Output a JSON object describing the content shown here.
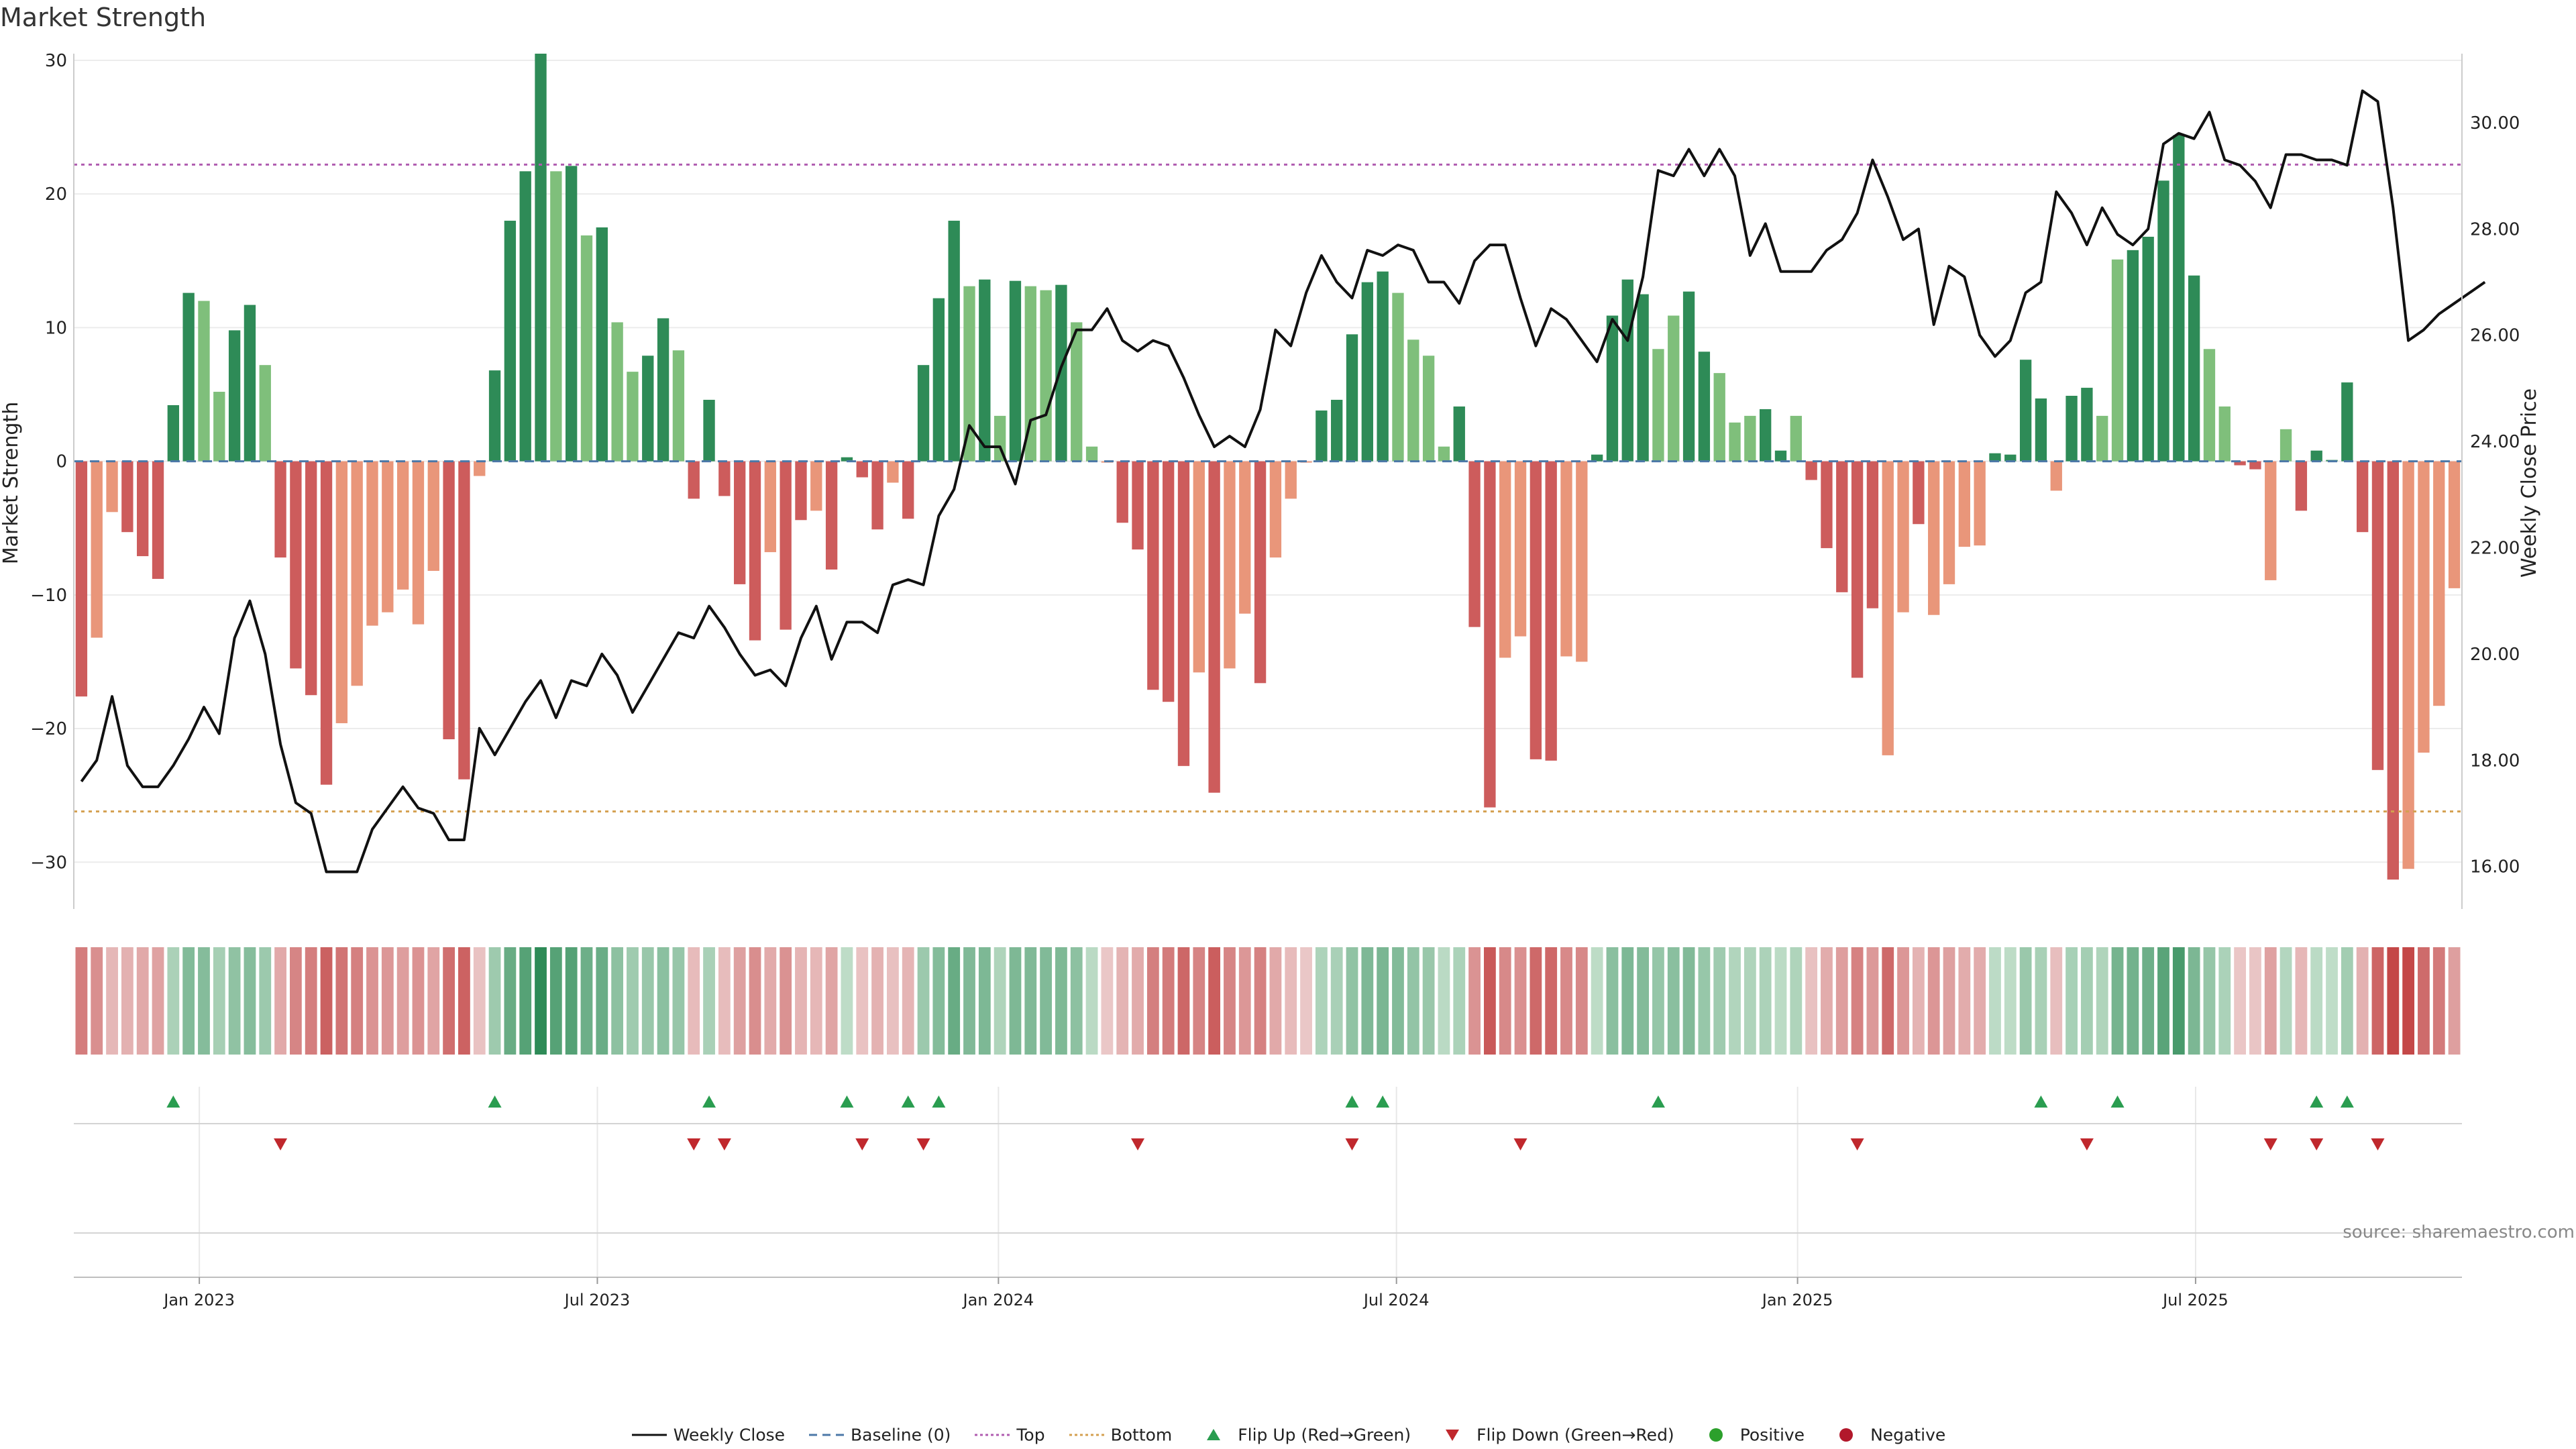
{
  "title": "Market Strength",
  "source": "source: sharemaestro.com",
  "colors": {
    "pos_dark": "#2e8b57",
    "pos_light": "#7fbf7b",
    "neg_dark": "#cd5c5c",
    "neg_light": "#e9967a",
    "price_line": "#111111",
    "baseline": "#4c78a8",
    "top": "#b05cb0",
    "bottom": "#d4a050",
    "flip_up": "#2a9d50",
    "flip_down": "#c0282d",
    "positive": "#2ca02c",
    "negative": "#b2182b"
  },
  "legend": [
    {
      "label": "Weekly Close",
      "symbol": "line"
    },
    {
      "label": "Baseline (0)",
      "symbol": "dash"
    },
    {
      "label": "Top",
      "symbol": "dot-top"
    },
    {
      "label": "Bottom",
      "symbol": "dot-bottom"
    },
    {
      "label": "Flip Up (Red→Green)",
      "symbol": "tri-up"
    },
    {
      "label": "Flip Down (Green→Red)",
      "symbol": "tri-down"
    },
    {
      "label": "Positive",
      "symbol": "circle-pos"
    },
    {
      "label": "Negative",
      "symbol": "circle-neg"
    }
  ],
  "chart_data": {
    "type": "bar",
    "title": "Market Strength",
    "ylabel": "Market Strength",
    "y2label": "Weekly Close Price",
    "ylim": [
      -33.5,
      30.5
    ],
    "y2lim": [
      15.2,
      31.3
    ],
    "yticks": [
      30,
      20,
      10,
      0,
      -10,
      -20,
      -30
    ],
    "ytick_labels": [
      "30",
      "20",
      "10",
      "0",
      "−10",
      "−20",
      "−30"
    ],
    "y2ticks": [
      30,
      28,
      26,
      24,
      22,
      20,
      18,
      16
    ],
    "y2tick_labels": [
      "30.00",
      "28.00",
      "26.00",
      "24.00",
      "22.00",
      "20.00",
      "18.00",
      "16.00"
    ],
    "xticks": [
      {
        "label": "Jan 2023",
        "week": 7.7
      },
      {
        "label": "Jul 2023",
        "week": 33.7
      },
      {
        "label": "Jan 2024",
        "week": 59.9
      },
      {
        "label": "Jul 2024",
        "week": 85.9
      },
      {
        "label": "Jan 2025",
        "week": 112.1
      },
      {
        "label": "Jul 2025",
        "week": 138.1
      }
    ],
    "top_line": 22.2,
    "bottom_line": -26.2,
    "baseline": 0,
    "strength": [
      -17.6,
      -13.2,
      -3.8,
      -5.3,
      -7.1,
      -8.8,
      4.2,
      12.6,
      12.0,
      5.2,
      9.8,
      11.7,
      7.2,
      -7.2,
      -15.5,
      -17.5,
      -24.2,
      -19.6,
      -16.8,
      -12.3,
      -11.3,
      -9.6,
      -12.2,
      -8.2,
      -20.8,
      -23.8,
      -1.1,
      6.8,
      18.0,
      21.7,
      30.5,
      21.7,
      22.1,
      16.9,
      17.5,
      10.4,
      6.7,
      7.9,
      10.7,
      8.3,
      -2.8,
      4.6,
      -2.6,
      -9.2,
      -13.4,
      -6.8,
      -12.6,
      -4.4,
      -3.7,
      -8.1,
      0.3,
      -1.2,
      -5.1,
      -1.6,
      -4.3,
      7.2,
      12.2,
      18.0,
      13.1,
      13.6,
      3.4,
      13.5,
      13.1,
      12.8,
      13.2,
      10.4,
      1.1,
      -0.1,
      -4.6,
      -6.6,
      -17.1,
      -18.0,
      -22.8,
      -15.8,
      -24.8,
      -15.5,
      -11.4,
      -16.6,
      -7.2,
      -2.8,
      -0.1,
      3.8,
      4.6,
      9.5,
      13.4,
      14.2,
      12.6,
      9.1,
      7.9,
      1.1,
      4.1,
      -12.4,
      -25.9,
      -14.7,
      -13.1,
      -22.3,
      -22.4,
      -14.6,
      -15.0,
      0.5,
      10.9,
      13.6,
      12.5,
      8.4,
      10.9,
      12.7,
      8.2,
      6.6,
      2.9,
      3.4,
      3.9,
      0.8,
      3.4,
      -1.4,
      -6.5,
      -9.8,
      -16.2,
      -11.0,
      -22.0,
      -11.3,
      -4.7,
      -11.5,
      -9.2,
      -6.4,
      -6.3,
      0.6,
      0.5,
      7.6,
      4.7,
      -2.2,
      4.9,
      5.5,
      3.4,
      15.1,
      15.8,
      16.8,
      21.0,
      24.4,
      13.9,
      8.4,
      4.1,
      -0.3,
      -0.6,
      -8.9,
      2.4,
      -3.7,
      0.8,
      0.1,
      5.9,
      -5.3,
      -23.1,
      -31.3,
      -30.5,
      -21.8,
      -18.3,
      -9.5
    ],
    "bar_shade": [
      "d",
      "l",
      "l",
      "d",
      "d",
      "d",
      "d",
      "d",
      "l",
      "l",
      "d",
      "d",
      "l",
      "d",
      "d",
      "d",
      "d",
      "l",
      "l",
      "l",
      "l",
      "l",
      "l",
      "l",
      "d",
      "d",
      "l",
      "d",
      "d",
      "d",
      "d",
      "l",
      "d",
      "l",
      "d",
      "l",
      "l",
      "d",
      "d",
      "l",
      "d",
      "d",
      "d",
      "d",
      "d",
      "l",
      "d",
      "d",
      "l",
      "d",
      "d",
      "d",
      "d",
      "l",
      "d",
      "d",
      "d",
      "d",
      "l",
      "d",
      "l",
      "d",
      "l",
      "l",
      "d",
      "l",
      "l",
      "l",
      "d",
      "d",
      "d",
      "d",
      "d",
      "l",
      "d",
      "l",
      "l",
      "d",
      "l",
      "l",
      "l",
      "d",
      "d",
      "d",
      "d",
      "d",
      "l",
      "l",
      "l",
      "l",
      "d",
      "d",
      "d",
      "l",
      "l",
      "d",
      "d",
      "l",
      "l",
      "d",
      "d",
      "d",
      "d",
      "l",
      "l",
      "d",
      "d",
      "l",
      "l",
      "l",
      "d",
      "d",
      "l",
      "d",
      "d",
      "d",
      "d",
      "d",
      "l",
      "l",
      "d",
      "l",
      "l",
      "l",
      "l",
      "d",
      "d",
      "d",
      "d",
      "l",
      "d",
      "d",
      "l",
      "l",
      "d",
      "d",
      "d",
      "d",
      "d",
      "l",
      "l",
      "d",
      "d",
      "l",
      "l",
      "d",
      "d",
      "d",
      "d",
      "d",
      "d",
      "d",
      "l",
      "l",
      "l",
      "l"
    ],
    "weekly_close": [
      17.6,
      18.0,
      19.2,
      17.9,
      17.5,
      17.5,
      17.9,
      18.4,
      19.0,
      18.5,
      20.3,
      21.0,
      20.0,
      18.3,
      17.2,
      17.0,
      15.9,
      15.9,
      15.9,
      16.7,
      17.1,
      17.5,
      17.1,
      17.0,
      16.5,
      16.5,
      18.6,
      18.1,
      18.6,
      19.1,
      19.5,
      18.8,
      19.5,
      19.4,
      20.0,
      19.6,
      18.9,
      19.4,
      19.9,
      20.4,
      20.3,
      20.9,
      20.5,
      20.0,
      19.6,
      19.7,
      19.4,
      20.3,
      20.9,
      19.9,
      20.6,
      20.6,
      20.4,
      21.3,
      21.4,
      21.3,
      22.6,
      23.1,
      24.3,
      23.9,
      23.9,
      23.2,
      24.4,
      24.5,
      25.4,
      26.1,
      26.1,
      26.5,
      25.9,
      25.7,
      25.9,
      25.8,
      25.2,
      24.5,
      23.9,
      24.1,
      23.9,
      24.6,
      26.1,
      25.8,
      26.8,
      27.5,
      27.0,
      26.7,
      27.6,
      27.5,
      27.7,
      27.6,
      27.0,
      27.0,
      26.6,
      27.4,
      27.7,
      27.7,
      26.7,
      25.8,
      26.5,
      26.3,
      25.9,
      25.5,
      26.3,
      25.9,
      27.1,
      29.1,
      29.0,
      29.5,
      29.0,
      29.5,
      29.0,
      27.5,
      28.1,
      27.2,
      27.2,
      27.2,
      27.6,
      27.8,
      28.3,
      29.3,
      28.6,
      27.8,
      28.0,
      26.2,
      27.3,
      27.1,
      26.0,
      25.6,
      25.9,
      26.8,
      27.0,
      28.7,
      28.3,
      27.7,
      28.4,
      27.9,
      27.7,
      28.0,
      29.6,
      29.8,
      29.7,
      30.2,
      29.3,
      29.2,
      28.9,
      28.4,
      29.4,
      29.4,
      29.3,
      29.3,
      29.2,
      30.6,
      30.4,
      28.4,
      25.9,
      26.1,
      26.4,
      26.6,
      26.8,
      27.0
    ],
    "regime_strip": [
      -17.6,
      -13.2,
      -3.8,
      -5.3,
      -7.1,
      -8.8,
      4.2,
      12.6,
      12.0,
      5.2,
      9.8,
      11.7,
      7.2,
      -7.2,
      -15.5,
      -17.5,
      -24.2,
      -19.6,
      -16.8,
      -12.3,
      -11.3,
      -9.6,
      -12.2,
      -8.2,
      -20.8,
      -23.8,
      -1.1,
      6.8,
      18.0,
      21.7,
      30.5,
      21.7,
      22.1,
      16.9,
      17.5,
      10.4,
      6.7,
      7.9,
      10.7,
      8.3,
      -2.8,
      4.6,
      -2.6,
      -9.2,
      -13.4,
      -6.8,
      -12.6,
      -4.4,
      -3.7,
      -8.1,
      0.3,
      -1.2,
      -5.1,
      -1.6,
      -4.3,
      7.2,
      12.2,
      18.0,
      13.1,
      13.6,
      3.4,
      13.5,
      13.1,
      12.8,
      13.2,
      10.4,
      1.1,
      -0.1,
      -4.6,
      -6.6,
      -17.1,
      -18.0,
      -22.8,
      -15.8,
      -24.8,
      -15.5,
      -11.4,
      -16.6,
      -7.2,
      -2.8,
      -0.1,
      3.8,
      4.6,
      9.5,
      13.4,
      14.2,
      12.6,
      9.1,
      7.9,
      1.1,
      4.1,
      -12.4,
      -25.9,
      -14.7,
      -13.1,
      -22.3,
      -22.4,
      -14.6,
      -15.0,
      0.5,
      10.9,
      13.6,
      12.5,
      8.4,
      10.9,
      12.7,
      8.2,
      6.6,
      2.9,
      3.4,
      3.9,
      0.8,
      3.4,
      -1.4,
      -6.5,
      -9.8,
      -16.2,
      -11.0,
      -22.0,
      -11.3,
      -4.7,
      -11.5,
      -9.2,
      -6.4,
      -6.3,
      0.6,
      0.5,
      7.6,
      4.7,
      -2.2,
      4.9,
      5.5,
      3.4,
      15.1,
      15.8,
      16.8,
      21.0,
      24.4,
      13.9,
      8.4,
      4.1,
      -0.3,
      -0.6,
      -8.9,
      2.4,
      -3.7,
      0.8,
      0.1,
      5.9,
      -5.3,
      -23.1,
      -31.3,
      -30.5,
      -21.8,
      -18.3,
      -9.5
    ],
    "flip_up_weeks": [
      6,
      27,
      41,
      50,
      54,
      56,
      83,
      85,
      103,
      128,
      133,
      146,
      148
    ],
    "flip_down_weeks": [
      13,
      40,
      42,
      51,
      55,
      69,
      83,
      94,
      116,
      131,
      143,
      146,
      150
    ]
  }
}
